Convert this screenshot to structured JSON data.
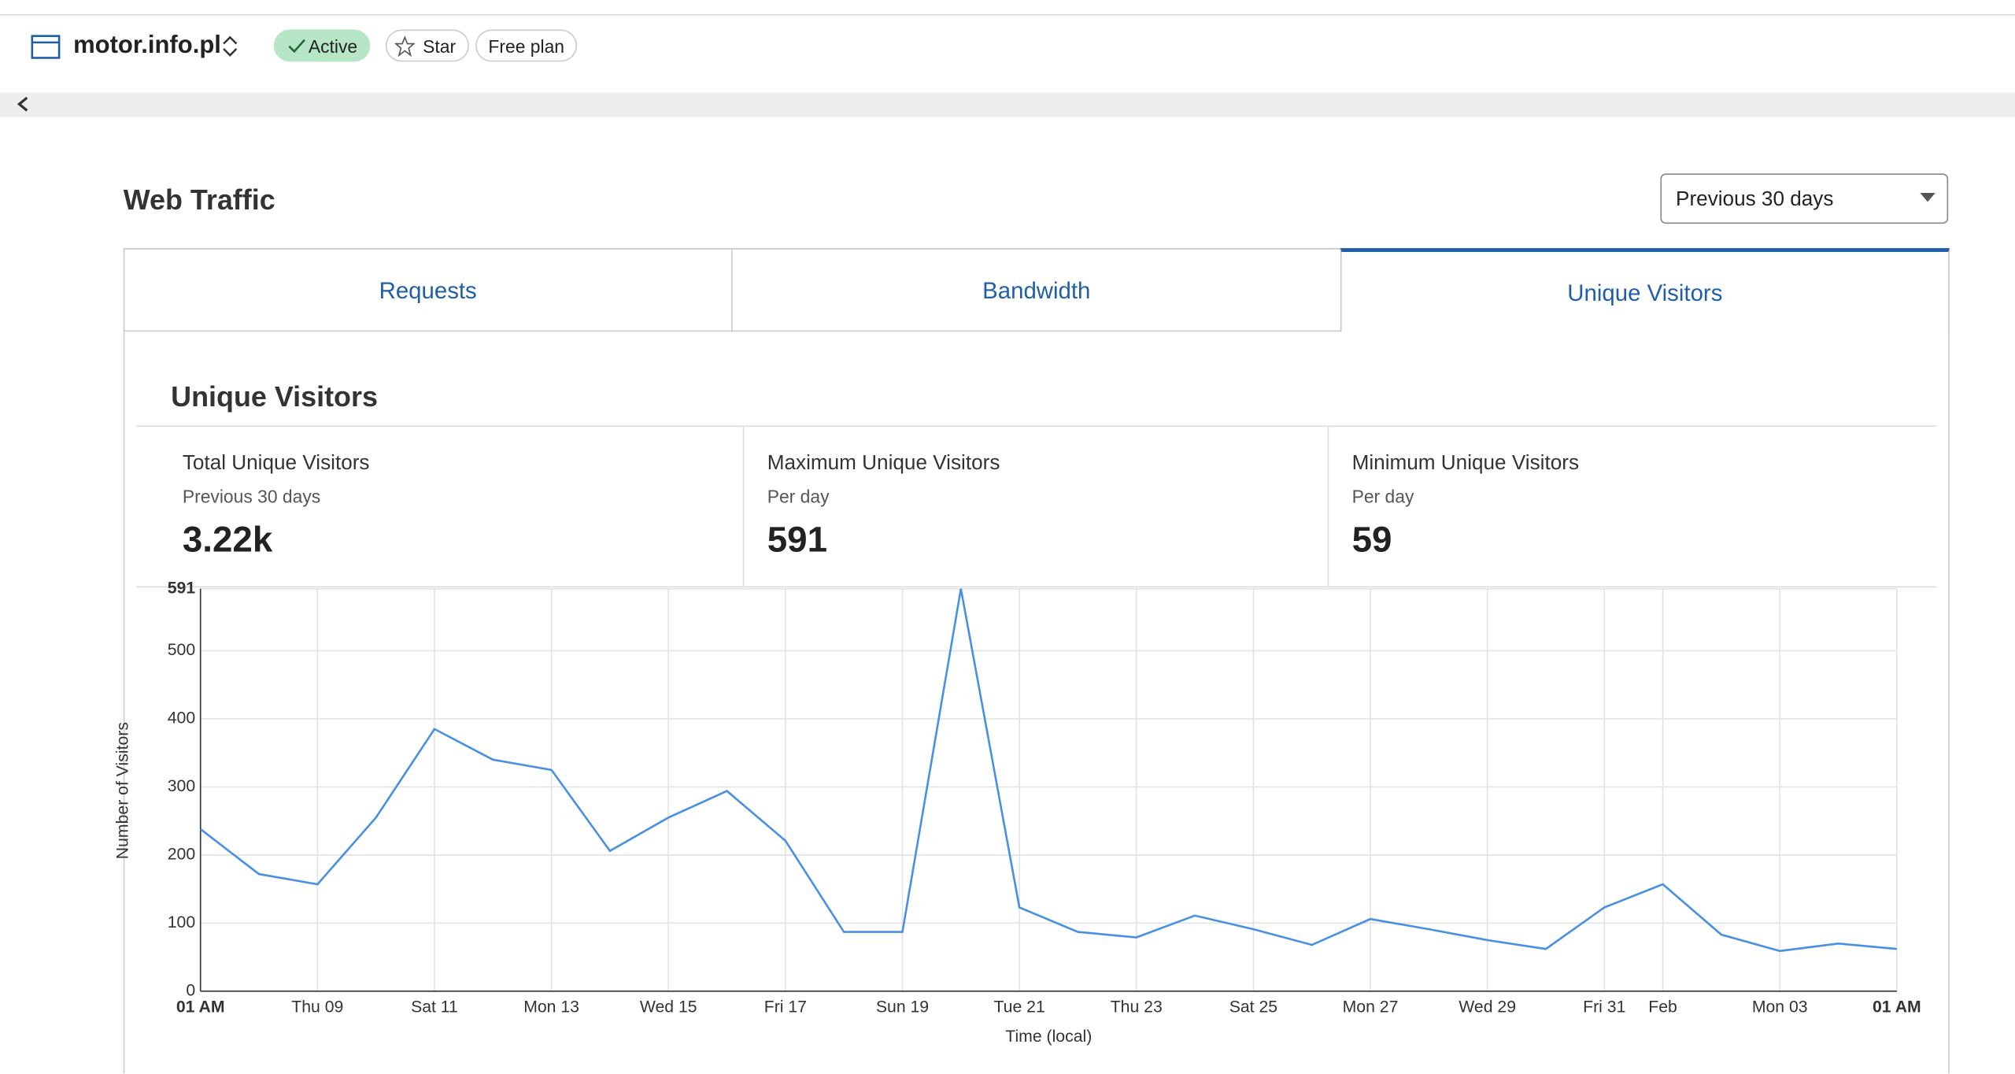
{
  "header": {
    "site": "motor.info.pl",
    "status": "Active",
    "star": "Star",
    "plan": "Free plan"
  },
  "section_title": "Web Traffic",
  "range_select": "Previous 30 days",
  "tabs": [
    "Requests",
    "Bandwidth",
    "Unique Visitors"
  ],
  "panel": {
    "title": "Unique Visitors",
    "stats": [
      {
        "label": "Total Unique Visitors",
        "sub": "Previous 30 days",
        "value": "3.22k"
      },
      {
        "label": "Maximum Unique Visitors",
        "sub": "Per day",
        "value": "591"
      },
      {
        "label": "Minimum Unique Visitors",
        "sub": "Per day",
        "value": "59"
      }
    ]
  },
  "chart_data": {
    "type": "line",
    "x_label": "Time (local)",
    "y_label": "Number of Visitors",
    "categories": [
      "01 AM",
      null,
      "Thu 09",
      null,
      "Sat 11",
      null,
      "Mon 13",
      null,
      "Wed 15",
      null,
      "Fri 17",
      null,
      "Sun 19",
      null,
      "Tue 21",
      null,
      "Thu 23",
      null,
      "Sat 25",
      null,
      "Mon 27",
      null,
      "Wed 29",
      null,
      "Fri 31",
      "Feb",
      null,
      "Mon 03",
      null,
      "01 AM"
    ],
    "series": [
      {
        "name": "Unique Visitors",
        "color": "#4a90e2",
        "values": [
          238,
          172,
          157,
          255,
          385,
          340,
          325,
          206,
          255,
          294,
          221,
          87,
          87,
          591,
          123,
          87,
          79,
          111,
          91,
          68,
          106,
          91,
          75,
          62,
          123,
          157,
          83,
          59,
          70,
          62
        ]
      }
    ],
    "ylim": [
      0,
      591
    ],
    "yticks": [
      0,
      100,
      200,
      300,
      400,
      500,
      591
    ],
    "grid": true
  }
}
